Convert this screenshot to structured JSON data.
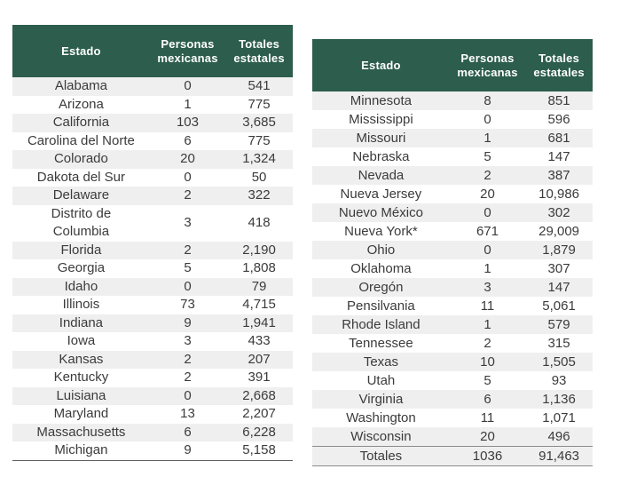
{
  "colors": {
    "header_bg": "#2C5D4D",
    "header_text": "#FFFFFF",
    "row_stripe": "#EFEFEF",
    "row_plain": "#FFFFFF",
    "text": "#3B3B3B",
    "bottom_border": "#5F5F5F",
    "totals_border": "#8C8C8C",
    "page_bg": "#FFFFFF"
  },
  "tables": [
    {
      "id": "left",
      "headers": [
        "Estado",
        "Personas mexicanas",
        "Totales estatales"
      ],
      "rows": [
        [
          "Alabama",
          "0",
          "541"
        ],
        [
          "Arizona",
          "1",
          "775"
        ],
        [
          "California",
          "103",
          "3,685"
        ],
        [
          "Carolina del Norte",
          "6",
          "775"
        ],
        [
          "Colorado",
          "20",
          "1,324"
        ],
        [
          "Dakota del Sur",
          "0",
          "50"
        ],
        [
          "Delaware",
          "2",
          "322"
        ],
        [
          "Distrito de\nColumbia",
          "3",
          "418"
        ],
        [
          "Florida",
          "2",
          "2,190"
        ],
        [
          "Georgia",
          "5",
          "1,808"
        ],
        [
          "Idaho",
          "0",
          "79"
        ],
        [
          "Illinois",
          "73",
          "4,715"
        ],
        [
          "Indiana",
          "9",
          "1,941"
        ],
        [
          "Iowa",
          "3",
          "433"
        ],
        [
          "Kansas",
          "2",
          "207"
        ],
        [
          "Kentucky",
          "2",
          "391"
        ],
        [
          "Luisiana",
          "0",
          "2,668"
        ],
        [
          "Maryland",
          "13",
          "2,207"
        ],
        [
          "Massachusetts",
          "6",
          "6,228"
        ],
        [
          "Michigan",
          "9",
          "5,158"
        ]
      ]
    },
    {
      "id": "right",
      "headers": [
        "Estado",
        "Personas mexicanas",
        "Totales estatales"
      ],
      "rows": [
        [
          "Minnesota",
          "8",
          "851"
        ],
        [
          "Mississippi",
          "0",
          "596"
        ],
        [
          "Missouri",
          "1",
          "681"
        ],
        [
          "Nebraska",
          "5",
          "147"
        ],
        [
          "Nevada",
          "2",
          "387"
        ],
        [
          "Nueva Jersey",
          "20",
          "10,986"
        ],
        [
          "Nuevo México",
          "0",
          "302"
        ],
        [
          "Nueva York*",
          "671",
          "29,009"
        ],
        [
          "Ohio",
          "0",
          "1,879"
        ],
        [
          "Oklahoma",
          "1",
          "307"
        ],
        [
          "Oregón",
          "3",
          "147"
        ],
        [
          "Pensilvania",
          "11",
          "5,061"
        ],
        [
          "Rhode Island",
          "1",
          "579"
        ],
        [
          "Tennessee",
          "2",
          "315"
        ],
        [
          "Texas",
          "10",
          "1,505"
        ],
        [
          "Utah",
          "5",
          "93"
        ],
        [
          "Virginia",
          "6",
          "1,136"
        ],
        [
          "Washington",
          "11",
          "1,071"
        ],
        [
          "Wisconsin",
          "20",
          "496"
        ]
      ],
      "totals_row": [
        "Totales",
        "1036",
        "91,463"
      ]
    }
  ]
}
